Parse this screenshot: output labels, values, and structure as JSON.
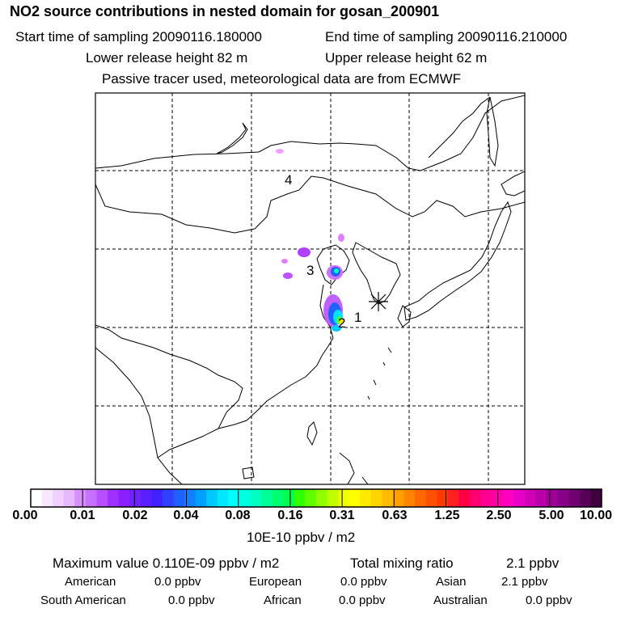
{
  "header": {
    "title": "NO2 source contributions in nested domain for gosan_200901",
    "start_label": "Start time of sampling 20090116.180000",
    "end_label": "End time of sampling 20090116.210000",
    "lower_label": "Lower release height   82 m",
    "upper_label": "Upper release height   62 m",
    "note": "Passive tracer used, meteorological data are from ECMWF"
  },
  "map": {
    "labels": [
      "1",
      "2",
      "3",
      "4"
    ],
    "receptor_marker": "asterisk-icon"
  },
  "colorbar": {
    "ticks": [
      "0.00",
      "0.01",
      "0.02",
      "0.04",
      "0.08",
      "0.16",
      "0.31",
      "0.63",
      "1.25",
      "2.50",
      "5.00",
      "10.00"
    ],
    "units": "10E-10 ppbv / m2",
    "colors": [
      "#ffffff",
      "#f8e8ff",
      "#f0d0ff",
      "#e6b8ff",
      "#d890ff",
      "#c870ff",
      "#b850ff",
      "#a030ff",
      "#8a20ff",
      "#7020ff",
      "#5a20ff",
      "#4020ff",
      "#3040ff",
      "#2060ff",
      "#1080ff",
      "#00a0ff",
      "#00c8ff",
      "#00e8ff",
      "#00ffff",
      "#00ffe0",
      "#00ffc0",
      "#00ff98",
      "#00ff70",
      "#00ff50",
      "#30ff00",
      "#60ff00",
      "#90ff00",
      "#c0ff00",
      "#f0ff00",
      "#ffff00",
      "#ffea00",
      "#ffd400",
      "#ffbb00",
      "#ffa000",
      "#ff8400",
      "#ff6800",
      "#ff5000",
      "#ff3a00",
      "#ff2020",
      "#ff0044",
      "#ff0070",
      "#ff0090",
      "#ff00a8",
      "#ff00c0",
      "#e800c8",
      "#d000b8",
      "#b800a8",
      "#a00098",
      "#880088",
      "#700070",
      "#580058",
      "#400040"
    ]
  },
  "summary": {
    "max_label": "Maximum value  0.110E-09 ppbv / m2",
    "total_label": "Total mixing ratio",
    "total_value": "2.1 ppbv",
    "american_label": "American",
    "american_value": "0.0 ppbv",
    "european_label": "European",
    "european_value": "0.0 ppbv",
    "asian_label": "Asian",
    "asian_value": "2.1 ppbv",
    "south_american_label": "South American",
    "south_american_value": "0.0 ppbv",
    "african_label": "African",
    "african_value": "0.0 ppbv",
    "australian_label": "Australian",
    "australian_value": "0.0 ppbv"
  }
}
